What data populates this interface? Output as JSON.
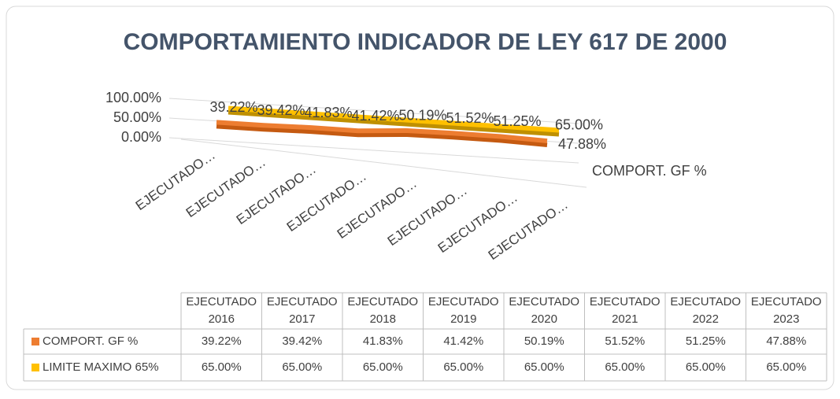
{
  "chart_data": {
    "type": "line",
    "title": "COMPORTAMIENTO INDICADOR DE LEY 617 DE 2000",
    "categories": [
      "EJECUTADO 2016",
      "EJECUTADO 2017",
      "EJECUTADO 2018",
      "EJECUTADO 2019",
      "EJECUTADO 2020",
      "EJECUTADO 2021",
      "EJECUTADO 2022",
      "EJECUTADO 2023"
    ],
    "x_tick_labels": [
      "EJECUTADO…",
      "EJECUTADO…",
      "EJECUTADO…",
      "EJECUTADO…",
      "EJECUTADO…",
      "EJECUTADO…",
      "EJECUTADO…",
      "EJECUTADO…"
    ],
    "series": [
      {
        "name": "COMPORT. GF %",
        "color": "#ed7d31",
        "values": [
          39.22,
          39.42,
          41.83,
          41.42,
          50.19,
          51.52,
          51.25,
          47.88
        ],
        "value_labels": [
          "39.22%",
          "39.42%",
          "41.83%",
          "41.42%",
          "50.19%",
          "51.52%",
          "51.25%",
          "47.88%"
        ]
      },
      {
        "name": "LIMITE MAXIMO 65%",
        "color": "#ffc000",
        "values": [
          65,
          65,
          65,
          65,
          65,
          65,
          65,
          65
        ],
        "value_labels": [
          "65.00%",
          "65.00%",
          "65.00%",
          "65.00%",
          "65.00%",
          "65.00%",
          "65.00%",
          "65.00%"
        ]
      }
    ],
    "ylim": [
      0,
      100
    ],
    "yticks": [
      {
        "value": 0,
        "label": "0.00%"
      },
      {
        "value": 50,
        "label": "50.00%"
      },
      {
        "value": 100,
        "label": "100.00%"
      }
    ],
    "grid": true
  }
}
